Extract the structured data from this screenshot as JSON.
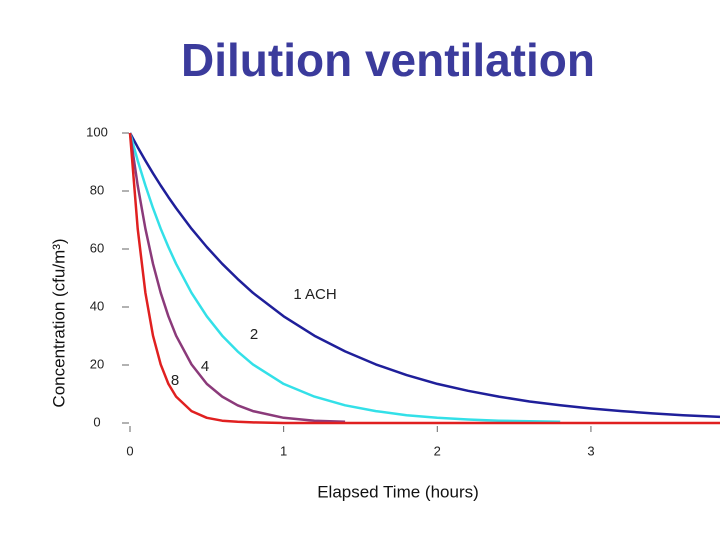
{
  "chart_data": {
    "type": "line",
    "title": "Dilution ventilation",
    "x_label": "Elapsed Time (hours)",
    "y_label": "Concentration (cfu/m³)",
    "x": [
      0,
      0.05,
      0.1,
      0.15,
      0.2,
      0.25,
      0.3,
      0.4,
      0.5,
      0.6,
      0.7,
      0.8,
      1,
      1.2,
      1.4,
      1.6,
      1.8,
      2,
      2.2,
      2.4,
      2.6,
      2.8,
      3,
      3.2,
      3.4,
      3.6,
      3.84
    ],
    "series": [
      {
        "name": "1 ACH",
        "color": "#1f1f9a",
        "values": [
          100,
          95.1,
          90.5,
          86.1,
          81.9,
          77.9,
          74.1,
          67.0,
          60.7,
          54.9,
          49.7,
          44.9,
          36.8,
          30.1,
          24.7,
          20.2,
          16.5,
          13.5,
          11.1,
          9.1,
          7.4,
          6.1,
          5.0,
          4.1,
          3.3,
          2.7,
          2.1
        ]
      },
      {
        "name": "2",
        "color": "#33e0e8",
        "values": [
          100,
          90.5,
          81.9,
          74.1,
          67.0,
          60.7,
          54.9,
          44.9,
          36.8,
          30.1,
          24.7,
          20.2,
          13.5,
          9.1,
          6.1,
          4.1,
          2.7,
          1.8,
          1.2,
          0.8,
          0.6,
          0.4,
          null,
          null,
          null,
          null,
          null
        ]
      },
      {
        "name": "4",
        "color": "#8b3a7a",
        "values": [
          100,
          81.9,
          67.0,
          54.9,
          44.9,
          36.8,
          30.1,
          20.2,
          13.5,
          9.1,
          6.1,
          4.1,
          1.8,
          0.8,
          0.4,
          null,
          null,
          null,
          null,
          null,
          null,
          null,
          null,
          null,
          null,
          null,
          null
        ]
      },
      {
        "name": "8",
        "color": "#e02020",
        "values": [
          100,
          67.0,
          44.9,
          30.1,
          20.2,
          13.5,
          9.1,
          4.1,
          1.8,
          0.8,
          0.4,
          0.2,
          0,
          0,
          0,
          0,
          0,
          0,
          0,
          0,
          0,
          0,
          0,
          0,
          0,
          0,
          0
        ]
      }
    ],
    "xlim": [
      0,
      3.84
    ],
    "xticks": [
      0,
      1,
      2,
      3
    ],
    "ylim": [
      0,
      100
    ],
    "yticks": [
      0,
      20,
      40,
      60,
      80,
      100
    ]
  }
}
